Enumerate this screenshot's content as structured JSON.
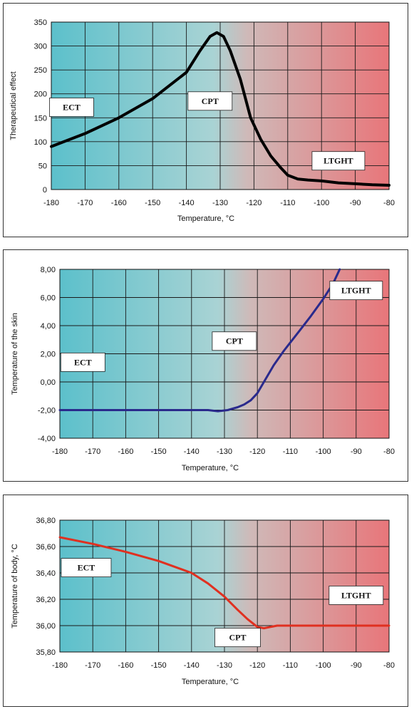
{
  "chart_data": [
    {
      "type": "line",
      "xlabel": "Temperature, °C",
      "ylabel": "Therapeutical effect",
      "xlim": [
        -180,
        -80
      ],
      "ylim": [
        0,
        350
      ],
      "xticks": [
        "-180",
        "-170",
        "-160",
        "-150",
        "-140",
        "-130",
        "-120",
        "-110",
        "-100",
        "-90",
        "-80"
      ],
      "yticks": [
        "0",
        "50",
        "100",
        "150",
        "200",
        "250",
        "300",
        "350"
      ],
      "grid": true,
      "line_color": "#000000",
      "series": [
        {
          "x": [
            -180,
            -170,
            -160,
            -150,
            -140,
            -136,
            -133,
            -131,
            -129,
            -127,
            -124,
            -121,
            -118,
            -115,
            -112,
            -110,
            -107,
            -104,
            -100,
            -95,
            -90,
            -85,
            -80
          ],
          "y": [
            90,
            117,
            150,
            190,
            245,
            290,
            320,
            328,
            320,
            290,
            230,
            150,
            105,
            70,
            45,
            30,
            22,
            20,
            18,
            14,
            12,
            10,
            9
          ]
        }
      ],
      "annotations": [
        {
          "text": "ECT",
          "x": -174,
          "y": 172
        },
        {
          "text": "CPT",
          "x": -133,
          "y": 185
        },
        {
          "text": "LTGHT",
          "x": -95,
          "y": 60
        }
      ]
    },
    {
      "type": "line",
      "xlabel": "Temperature, °C",
      "ylabel": "Temperature of the skin",
      "xlim": [
        -180,
        -80
      ],
      "ylim": [
        -4,
        8
      ],
      "xticks": [
        "-180",
        "-170",
        "-160",
        "-150",
        "-140",
        "-130",
        "-120",
        "-110",
        "-100",
        "-90",
        "-80"
      ],
      "yticks": [
        "-4,00",
        "-2,00",
        "0,00",
        "2,00",
        "4,00",
        "6,00",
        "8,00"
      ],
      "grid": true,
      "line_color": "#2a2a8c",
      "series": [
        {
          "x": [
            -180,
            -170,
            -160,
            -150,
            -140,
            -135,
            -132,
            -129,
            -126,
            -124,
            -122,
            -120,
            -118,
            -115,
            -112,
            -110,
            -107,
            -104,
            -100,
            -97,
            -95
          ],
          "y": [
            -2.0,
            -2.0,
            -2.0,
            -2.0,
            -2.0,
            -2.0,
            -2.08,
            -2.0,
            -1.8,
            -1.6,
            -1.3,
            -0.8,
            0.0,
            1.2,
            2.2,
            2.8,
            3.7,
            4.6,
            5.9,
            7.0,
            8.0
          ]
        }
      ],
      "annotations": [
        {
          "text": "ECT",
          "x": -173,
          "y": 1.4
        },
        {
          "text": "CPT",
          "x": -127,
          "y": 2.9
        },
        {
          "text": "LTGHT",
          "x": -90,
          "y": 6.5
        }
      ]
    },
    {
      "type": "line",
      "xlabel": "Temperature, °C",
      "ylabel": "Temperature of body, °C",
      "xlim": [
        -180,
        -80
      ],
      "ylim": [
        35.8,
        36.8
      ],
      "xticks": [
        "-180",
        "-170",
        "-160",
        "-150",
        "-140",
        "-130",
        "-120",
        "-110",
        "-100",
        "-90",
        "-80"
      ],
      "yticks": [
        "35,80",
        "36,00",
        "36,20",
        "36,40",
        "36,60",
        "36,80"
      ],
      "grid": true,
      "line_color": "#e03020",
      "series": [
        {
          "x": [
            -180,
            -170,
            -160,
            -150,
            -140,
            -135,
            -130,
            -126,
            -123,
            -120,
            -118,
            -116,
            -114,
            -112,
            -110,
            -100,
            -90,
            -80
          ],
          "y": [
            36.67,
            36.62,
            36.56,
            36.49,
            36.4,
            36.32,
            36.22,
            36.12,
            36.05,
            35.99,
            35.98,
            35.99,
            36.0,
            36.0,
            36.0,
            36.0,
            36.0,
            36.0
          ]
        }
      ],
      "annotations": [
        {
          "text": "ECT",
          "x": -172,
          "y": 36.44
        },
        {
          "text": "CPT",
          "x": -126,
          "y": 35.91
        },
        {
          "text": "LTGHT",
          "x": -90,
          "y": 36.23
        }
      ]
    }
  ]
}
